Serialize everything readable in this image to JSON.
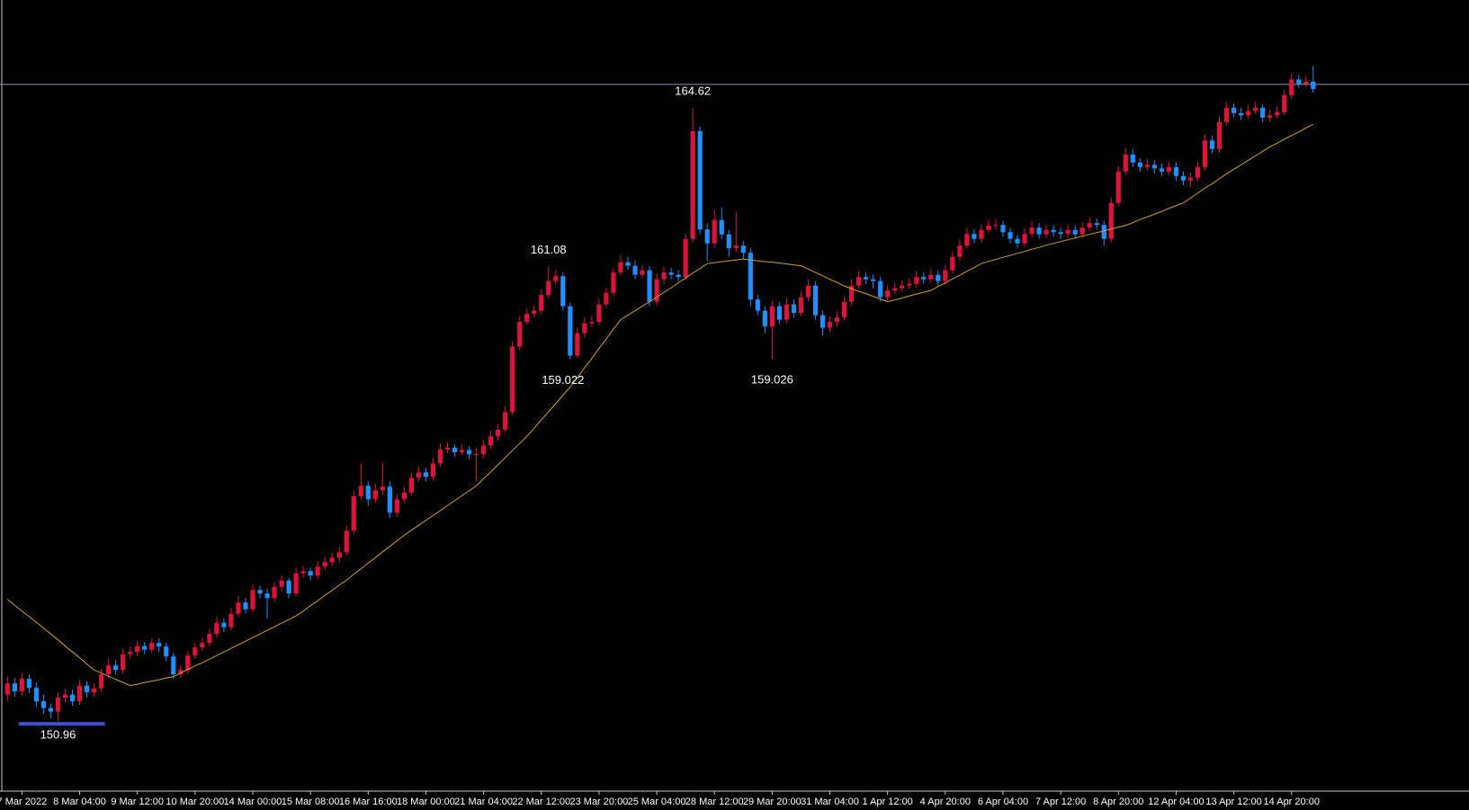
{
  "chart_data": {
    "type": "candlestick",
    "categories": [
      null,
      null,
      "7 Mar 2022",
      null,
      null,
      null,
      null,
      null,
      null,
      null,
      "8 Mar 04:00",
      null,
      null,
      null,
      null,
      null,
      null,
      null,
      "9 Mar 12:00",
      null,
      null,
      null,
      null,
      null,
      null,
      null,
      "10 Mar 20:00",
      null,
      null,
      null,
      null,
      null,
      null,
      null,
      "14 Mar 00:00",
      null,
      null,
      null,
      null,
      null,
      null,
      null,
      "15 Mar 08:00",
      null,
      null,
      null,
      null,
      null,
      null,
      null,
      "16 Mar 16:00",
      null,
      null,
      null,
      null,
      null,
      null,
      null,
      "18 Mar 00:00",
      null,
      null,
      null,
      null,
      null,
      null,
      null,
      "21 Mar 04:00",
      null,
      null,
      null,
      null,
      null,
      null,
      null,
      "22 Mar 12:00",
      null,
      null,
      null,
      null,
      null,
      null,
      null,
      "23 Mar 20:00",
      null,
      null,
      null,
      null,
      null,
      null,
      null,
      "25 Mar 04:00",
      null,
      null,
      null,
      null,
      null,
      null,
      null,
      "28 Mar 12:00",
      null,
      null,
      null,
      null,
      null,
      null,
      null,
      "29 Mar 20:00",
      null,
      null,
      null,
      null,
      null,
      null,
      null,
      "31 Mar 04:00",
      null,
      null,
      null,
      null,
      null,
      null,
      null,
      "1 Apr 12:00",
      null,
      null,
      null,
      null,
      null,
      null,
      null,
      "4 Apr 20:00",
      null,
      null,
      null,
      null,
      null,
      null,
      null,
      "6 Apr 04:00",
      null,
      null,
      null,
      null,
      null,
      null,
      null,
      "7 Apr 12:00",
      null,
      null,
      null,
      null,
      null,
      null,
      null,
      "8 Apr 20:00",
      null,
      null,
      null,
      null,
      null,
      null,
      null,
      "12 Apr 04:00",
      null,
      null,
      null,
      null,
      null,
      null,
      null,
      "13 Apr 12:00",
      null,
      null,
      null,
      null,
      null,
      null,
      null,
      "14 Apr 20:00",
      null,
      null,
      null
    ],
    "open": [
      151.55,
      151.8,
      151.62,
      151.9,
      151.7,
      151.4,
      151.25,
      151.17,
      151.48,
      151.55,
      151.4,
      151.75,
      151.6,
      151.69,
      152.0,
      152.2,
      152.1,
      152.45,
      152.5,
      152.63,
      152.55,
      152.7,
      152.62,
      152.4,
      152.0,
      152.1,
      152.42,
      152.6,
      152.7,
      152.9,
      153.15,
      153.05,
      153.35,
      153.6,
      153.45,
      153.88,
      153.8,
      153.7,
      153.95,
      154.09,
      153.8,
      154.25,
      154.3,
      154.2,
      154.4,
      154.5,
      154.6,
      154.72,
      155.2,
      155.97,
      156.2,
      155.9,
      156.1,
      156.18,
      155.6,
      155.9,
      156.05,
      156.38,
      156.5,
      156.4,
      156.7,
      157.01,
      157.05,
      156.95,
      157.0,
      156.9,
      156.91,
      157.1,
      157.3,
      157.45,
      157.84,
      159.3,
      159.85,
      160.03,
      160.1,
      160.45,
      160.76,
      160.87,
      160.2,
      159.1,
      159.6,
      159.82,
      159.85,
      160.24,
      160.5,
      160.95,
      161.18,
      161.1,
      160.9,
      161.0,
      160.3,
      160.8,
      160.95,
      160.9,
      160.85,
      161.7,
      164.1,
      161.91,
      161.6,
      162.12,
      161.8,
      161.49,
      161.55,
      161.39,
      160.35,
      160.1,
      159.75,
      160.2,
      159.9,
      160.24,
      160.05,
      160.4,
      160.66,
      160.0,
      159.72,
      159.85,
      159.95,
      160.3,
      160.66,
      160.85,
      160.8,
      160.76,
      160.4,
      160.55,
      160.6,
      160.66,
      160.7,
      160.85,
      160.8,
      160.9,
      160.76,
      161.0,
      161.3,
      161.55,
      161.81,
      161.7,
      161.9,
      162.0,
      162.01,
      161.85,
      161.7,
      161.6,
      161.81,
      161.95,
      161.8,
      161.9,
      161.85,
      161.81,
      161.9,
      161.8,
      161.95,
      162.05,
      162.01,
      161.7,
      162.5,
      163.2,
      163.58,
      163.4,
      163.3,
      163.35,
      163.27,
      163.2,
      163.3,
      163.1,
      163.0,
      163.06,
      163.3,
      163.89,
      163.7,
      164.3,
      164.62,
      164.5,
      164.45,
      164.55,
      164.62,
      164.4,
      164.45,
      164.52,
      164.9,
      165.25,
      165.15,
      165.2
    ],
    "high": [
      151.95,
      151.92,
      152.05,
      152.0,
      151.82,
      151.55,
      151.35,
      151.6,
      151.68,
      151.66,
      151.88,
      151.85,
      151.8,
      152.12,
      152.35,
      152.32,
      152.58,
      152.62,
      152.75,
      152.72,
      152.8,
      152.8,
      152.7,
      152.48,
      152.2,
      152.52,
      152.7,
      152.82,
      153.02,
      153.28,
      153.25,
      153.48,
      153.75,
      153.7,
      154.0,
      153.98,
      153.9,
      154.05,
      154.2,
      154.15,
      154.38,
      154.42,
      154.38,
      154.52,
      154.62,
      154.72,
      154.85,
      155.32,
      156.1,
      156.7,
      156.3,
      156.25,
      156.72,
      156.3,
      156.02,
      156.18,
      156.5,
      156.62,
      156.6,
      156.82,
      157.15,
      157.18,
      157.12,
      157.12,
      157.08,
      157.05,
      157.22,
      157.42,
      157.58,
      157.98,
      159.42,
      159.98,
      160.15,
      160.22,
      160.58,
      161.08,
      161.0,
      160.95,
      160.28,
      159.72,
      159.95,
      159.98,
      160.38,
      160.62,
      161.05,
      161.35,
      161.3,
      161.22,
      161.12,
      161.1,
      160.92,
      161.08,
      161.05,
      161.0,
      161.82,
      164.62,
      164.2,
      162.05,
      162.35,
      162.4,
      161.9,
      162.3,
      161.65,
      161.5,
      160.45,
      160.2,
      160.32,
      160.3,
      160.38,
      160.35,
      160.52,
      160.8,
      160.75,
      160.1,
      159.98,
      160.08,
      160.42,
      160.8,
      160.98,
      160.95,
      160.9,
      160.85,
      160.68,
      160.72,
      160.78,
      160.82,
      160.98,
      160.95,
      161.02,
      161.0,
      161.12,
      161.42,
      161.68,
      161.95,
      161.92,
      162.02,
      162.12,
      162.15,
      162.1,
      161.95,
      161.8,
      161.95,
      162.08,
      162.05,
      162.02,
      162.0,
      161.95,
      162.02,
      162.0,
      162.08,
      162.18,
      162.15,
      162.1,
      162.62,
      163.32,
      163.72,
      163.7,
      163.5,
      163.48,
      163.45,
      163.38,
      163.42,
      163.4,
      163.2,
      163.18,
      163.42,
      164.02,
      164.0,
      164.42,
      164.75,
      164.72,
      164.62,
      164.68,
      164.75,
      164.7,
      164.58,
      164.65,
      165.02,
      165.38,
      165.35,
      165.32,
      165.55
    ],
    "low": [
      151.4,
      151.5,
      151.52,
      151.58,
      151.28,
      151.12,
      151.02,
      150.96,
      151.38,
      151.3,
      151.32,
      151.48,
      151.5,
      151.6,
      151.9,
      152.0,
      152.02,
      152.35,
      152.4,
      152.45,
      152.48,
      152.5,
      152.3,
      151.9,
      151.92,
      152.02,
      152.35,
      152.52,
      152.62,
      152.82,
      152.95,
      152.98,
      153.28,
      153.35,
      153.38,
      153.7,
      153.25,
      153.62,
      153.85,
      153.7,
      153.72,
      154.15,
      154.1,
      154.12,
      154.32,
      154.42,
      154.5,
      154.65,
      155.12,
      155.88,
      155.75,
      155.82,
      156.0,
      155.48,
      155.5,
      155.82,
      155.98,
      156.3,
      156.3,
      156.32,
      156.62,
      156.92,
      156.85,
      156.88,
      156.8,
      156.3,
      156.82,
      157.02,
      157.2,
      157.38,
      157.78,
      159.22,
      159.78,
      159.95,
      160.02,
      160.38,
      160.68,
      160.1,
      159.022,
      159.05,
      159.5,
      159.72,
      159.78,
      160.15,
      160.42,
      160.88,
      161.0,
      160.8,
      160.82,
      160.2,
      160.22,
      160.7,
      160.8,
      160.75,
      160.78,
      161.62,
      161.8,
      161.2,
      161.5,
      161.7,
      161.3,
      161.4,
      161.25,
      160.2,
      160.0,
      159.6,
      159.026,
      159.8,
      159.82,
      159.95,
      159.98,
      160.32,
      159.9,
      159.55,
      159.62,
      159.75,
      159.88,
      160.22,
      160.58,
      160.7,
      160.6,
      160.3,
      160.32,
      160.48,
      160.52,
      160.58,
      160.62,
      160.7,
      160.72,
      160.66,
      160.68,
      160.92,
      161.22,
      161.48,
      161.6,
      161.62,
      161.82,
      161.9,
      161.75,
      161.6,
      161.5,
      161.52,
      161.72,
      161.7,
      161.72,
      161.75,
      161.7,
      161.72,
      161.7,
      161.72,
      161.88,
      161.92,
      161.55,
      161.62,
      162.42,
      163.12,
      163.3,
      163.2,
      163.22,
      163.15,
      163.1,
      163.12,
      163.0,
      162.9,
      162.85,
      162.98,
      163.22,
      163.6,
      163.62,
      164.22,
      164.4,
      164.35,
      164.38,
      164.48,
      164.3,
      164.3,
      164.38,
      164.45,
      164.82,
      165.05,
      165.08,
      164.95
    ],
    "close": [
      151.8,
      151.62,
      151.9,
      151.7,
      151.4,
      151.25,
      151.17,
      151.48,
      151.55,
      151.4,
      151.75,
      151.6,
      151.69,
      152.0,
      152.2,
      152.1,
      152.45,
      152.5,
      152.63,
      152.55,
      152.7,
      152.62,
      152.4,
      152.0,
      152.1,
      152.42,
      152.6,
      152.7,
      152.9,
      153.15,
      153.05,
      153.35,
      153.6,
      153.45,
      153.88,
      153.8,
      153.7,
      153.95,
      154.09,
      153.8,
      154.25,
      154.3,
      154.2,
      154.4,
      154.5,
      154.6,
      154.72,
      155.2,
      155.97,
      156.2,
      155.9,
      156.1,
      156.18,
      155.6,
      155.9,
      156.05,
      156.38,
      156.5,
      156.4,
      156.7,
      157.01,
      157.05,
      156.95,
      157.0,
      156.9,
      156.91,
      157.1,
      157.3,
      157.45,
      157.84,
      159.3,
      159.85,
      160.03,
      160.1,
      160.45,
      160.76,
      160.87,
      160.2,
      159.1,
      159.6,
      159.82,
      159.85,
      160.24,
      160.5,
      160.95,
      161.18,
      161.1,
      160.9,
      161.0,
      160.3,
      160.8,
      160.95,
      160.9,
      160.85,
      161.7,
      164.1,
      161.91,
      161.6,
      162.12,
      161.8,
      161.49,
      161.55,
      161.39,
      160.35,
      160.1,
      159.75,
      160.2,
      159.9,
      160.24,
      160.05,
      160.4,
      160.66,
      160.0,
      159.72,
      159.85,
      159.95,
      160.3,
      160.66,
      160.85,
      160.8,
      160.76,
      160.4,
      160.55,
      160.6,
      160.66,
      160.7,
      160.85,
      160.8,
      160.9,
      160.76,
      161.0,
      161.3,
      161.55,
      161.81,
      161.7,
      161.9,
      162.0,
      162.01,
      161.85,
      161.7,
      161.6,
      161.81,
      161.95,
      161.8,
      161.9,
      161.85,
      161.81,
      161.9,
      161.8,
      161.95,
      162.05,
      162.01,
      161.7,
      162.5,
      163.2,
      163.58,
      163.4,
      163.3,
      163.35,
      163.27,
      163.2,
      163.3,
      163.1,
      163.0,
      163.06,
      163.3,
      163.89,
      163.7,
      164.3,
      164.62,
      164.5,
      164.45,
      164.55,
      164.62,
      164.4,
      164.45,
      164.52,
      164.9,
      165.25,
      165.15,
      165.2,
      165.04
    ],
    "ma": [
      153.67,
      153.54,
      153.41,
      153.29,
      153.16,
      153.03,
      152.9,
      152.77,
      152.63,
      152.5,
      152.37,
      152.23,
      152.1,
      152.03,
      151.96,
      151.89,
      151.82,
      151.75,
      151.78,
      151.82,
      151.85,
      151.88,
      151.92,
      151.95,
      152.03,
      152.11,
      152.19,
      152.26,
      152.34,
      152.42,
      152.5,
      152.58,
      152.66,
      152.74,
      152.82,
      152.9,
      152.98,
      153.06,
      153.14,
      153.22,
      153.3,
      153.41,
      153.53,
      153.64,
      153.76,
      153.87,
      153.99,
      154.1,
      154.23,
      154.35,
      154.48,
      154.6,
      154.73,
      154.85,
      154.98,
      155.1,
      155.21,
      155.32,
      155.43,
      155.54,
      155.65,
      155.76,
      155.87,
      155.98,
      156.09,
      156.2,
      156.36,
      156.51,
      156.67,
      156.83,
      156.99,
      157.14,
      157.3,
      157.48,
      157.67,
      157.85,
      158.03,
      158.22,
      158.4,
      158.61,
      158.83,
      159.04,
      159.26,
      159.47,
      159.69,
      159.9,
      160.0,
      160.1,
      160.2,
      160.3,
      160.4,
      160.51,
      160.61,
      160.72,
      160.83,
      160.94,
      161.04,
      161.15,
      161.17,
      161.19,
      161.21,
      161.23,
      161.25,
      161.23,
      161.21,
      161.19,
      161.18,
      161.16,
      161.14,
      161.12,
      161.1,
      161.03,
      160.95,
      160.88,
      160.8,
      160.73,
      160.65,
      160.59,
      160.53,
      160.48,
      160.42,
      160.36,
      160.3,
      160.34,
      160.38,
      160.43,
      160.47,
      160.51,
      160.55,
      160.64,
      160.72,
      160.81,
      160.89,
      160.98,
      161.06,
      161.15,
      161.2,
      161.24,
      161.29,
      161.33,
      161.38,
      161.42,
      161.47,
      161.51,
      161.56,
      161.6,
      161.64,
      161.68,
      161.72,
      161.76,
      161.8,
      161.84,
      161.88,
      161.92,
      161.96,
      162.0,
      162.06,
      162.13,
      162.19,
      162.25,
      162.31,
      162.38,
      162.44,
      162.5,
      162.61,
      162.72,
      162.83,
      162.93,
      163.04,
      163.15,
      163.25,
      163.35,
      163.45,
      163.55,
      163.65,
      163.75,
      163.83,
      163.92,
      164.0,
      164.08,
      164.17,
      164.25
    ],
    "annotations": [
      164.62,
      161.08,
      159.022,
      159.026,
      150.96
    ],
    "hline": 165.14,
    "ylim": [
      149.4,
      167.02
    ],
    "colors": {
      "up": "#dc143c",
      "down": "#1e90ff",
      "ma": "#d4a017",
      "hline": "#8a9ab8",
      "marker": "#3a50d8",
      "axis": "#c8c8c8",
      "text": "#ffffff"
    }
  }
}
